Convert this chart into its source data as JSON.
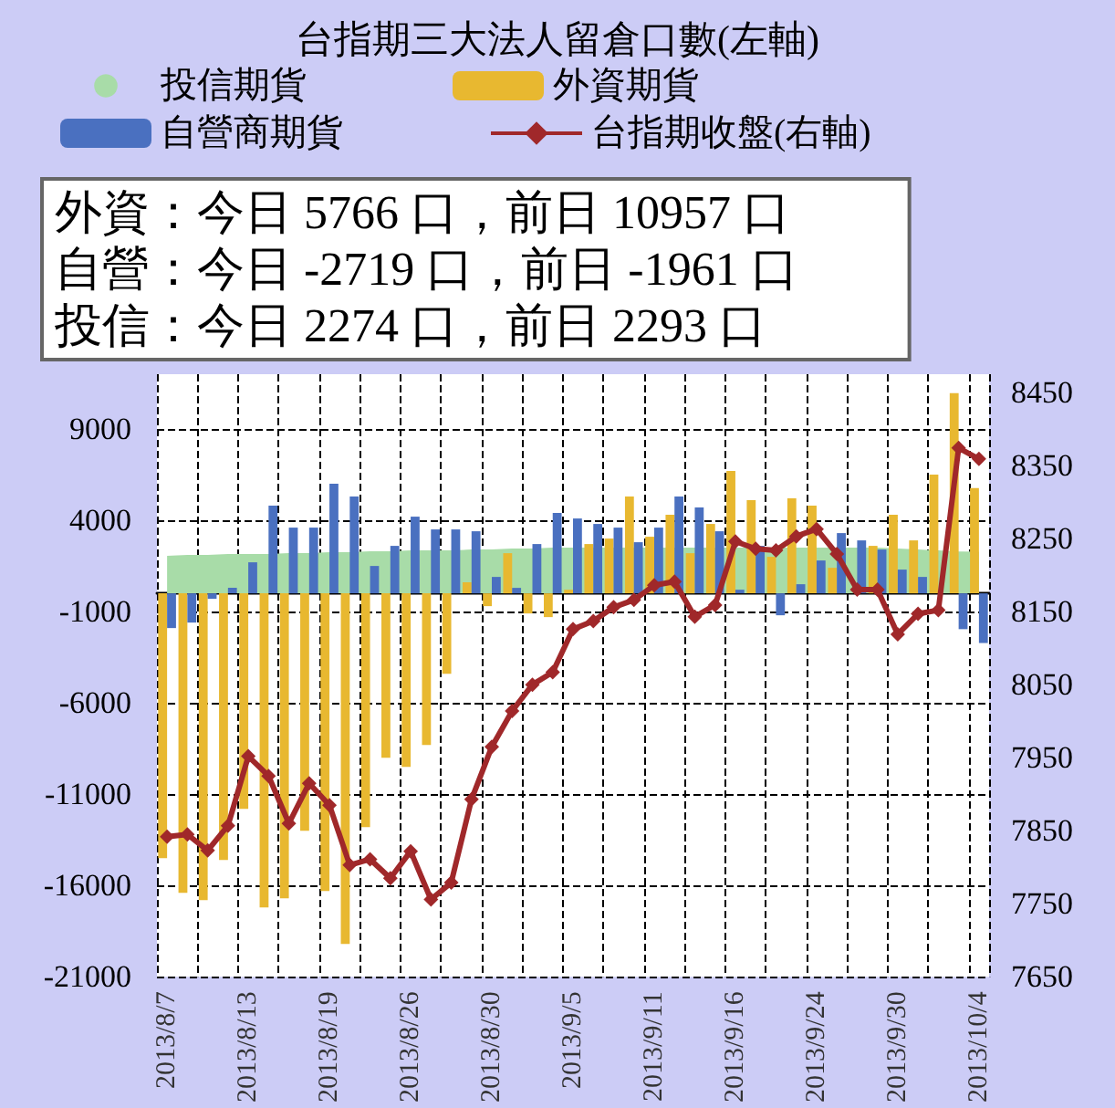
{
  "chart_data": {
    "type": "bar",
    "title": "台指期三大法人留倉口數(左軸)",
    "annotations": [
      "外資：今日 5766 口，前日 10957 口",
      "自營：今日 -2719 口，前日 -1961 口",
      "投信：今日 2274 口，前日 2293 口"
    ],
    "categories": [
      "2013/8/7",
      null,
      null,
      null,
      "2013/8/13",
      null,
      null,
      null,
      "2013/8/19",
      null,
      null,
      null,
      "2013/8/26",
      null,
      null,
      null,
      "2013/8/30",
      null,
      null,
      null,
      "2013/9/5",
      null,
      null,
      null,
      "2013/9/11",
      null,
      null,
      null,
      "2013/9/16",
      null,
      null,
      null,
      "2013/9/24",
      null,
      null,
      null,
      "2013/9/30",
      null,
      null,
      null,
      "2013/10/4"
    ],
    "series": [
      {
        "name": "投信期貨",
        "type": "area",
        "color": "#a8dca8",
        "values": [
          2050,
          2100,
          2100,
          2150,
          2150,
          2150,
          2200,
          2200,
          2250,
          2250,
          2300,
          2300,
          2350,
          2350,
          2350,
          2400,
          2400,
          2450,
          2450,
          2500,
          2500,
          2500,
          2500,
          2500,
          2500,
          2500,
          2500,
          2500,
          2500,
          2500,
          2500,
          2500,
          2500,
          2500,
          2500,
          2500,
          2450,
          2400,
          2350,
          2293,
          2274
        ]
      },
      {
        "name": "外資期貨",
        "color": "#e8b830",
        "values": [
          -14500,
          -16400,
          -16800,
          -14600,
          -11800,
          -17200,
          -16700,
          -13000,
          -16300,
          -19200,
          -12800,
          -9000,
          -9500,
          -8300,
          -4400,
          600,
          -700,
          2200,
          -1100,
          -1300,
          200,
          2700,
          3000,
          5300,
          3100,
          4300,
          2200,
          3800,
          6700,
          5100,
          2000,
          5200,
          4800,
          1400,
          null,
          2600,
          4300,
          2900,
          6500,
          10957,
          5766
        ]
      },
      {
        "name": "自營商期貨",
        "color": "#4a70c0",
        "values": [
          -1900,
          -1600,
          -300,
          300,
          1700,
          4800,
          3600,
          3600,
          6000,
          5300,
          1500,
          2600,
          4200,
          3500,
          3500,
          3400,
          900,
          300,
          2700,
          4400,
          4100,
          3800,
          3600,
          2800,
          3600,
          5300,
          4700,
          3400,
          200,
          2600,
          -1200,
          500,
          1800,
          3300,
          2900,
          2400,
          1300,
          900,
          null,
          -1961,
          -2719
        ]
      },
      {
        "name": "台指期收盤(右軸)",
        "type": "line",
        "axis": "y2",
        "color": "#a0282a",
        "marker": "diamond",
        "values": [
          7842,
          7845,
          7823,
          7857,
          7952,
          7925,
          7860,
          7915,
          7885,
          7803,
          7811,
          7785,
          7822,
          7756,
          7779,
          7893,
          7965,
          8014,
          8050,
          8067,
          8126,
          8137,
          8156,
          8166,
          8186,
          8191,
          8143,
          8159,
          8246,
          8236,
          8234,
          8253,
          8263,
          8229,
          8180,
          8180,
          8119,
          8147,
          8152,
          8374,
          8359
        ]
      }
    ],
    "ylim": [
      -21000,
      12000
    ],
    "yticks": [
      -21000,
      -16000,
      -11000,
      -6000,
      -1000,
      4000,
      9000
    ],
    "y2lim": [
      7650,
      8475
    ],
    "y2ticks": [
      7650,
      7750,
      7850,
      7950,
      8050,
      8150,
      8250,
      8350,
      8450
    ],
    "grid": true,
    "legend": "top",
    "line_style": "solid"
  }
}
